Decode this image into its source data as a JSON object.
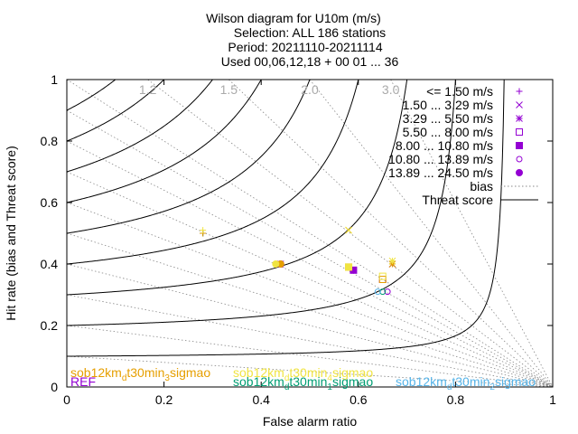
{
  "chart_data": {
    "type": "scatter",
    "title": [
      "Wilson diagram  for U10m (m/s)",
      "Selection: ALL    186 stations",
      "Period: 20211110-20211114",
      "Used 00,06,12,18 + 00 01 ... 36"
    ],
    "xlabel": "False alarm ratio",
    "ylabel": "Hit rate (bias and Threat score)",
    "xlim": [
      0,
      1
    ],
    "ylim": [
      0,
      1
    ],
    "xticks": [
      "0",
      "0.2",
      "0.4",
      "0.6",
      "0.8",
      "1"
    ],
    "yticks": [
      "0",
      "0.2",
      "0.4",
      "0.6",
      "0.8",
      "1"
    ],
    "bias_values": [
      0.1,
      0.2,
      0.3,
      0.4,
      0.5,
      0.6,
      0.7,
      0.8,
      0.9,
      1.0,
      1.2,
      1.5,
      2.0,
      3.0
    ],
    "bias_labels": [
      {
        "text": "1.2",
        "bias": 1.2
      },
      {
        "text": "1.5",
        "bias": 1.5
      },
      {
        "text": "2.0",
        "bias": 2.0
      },
      {
        "text": "3.0",
        "bias": 3.0
      }
    ],
    "threat_scores": [
      0.1,
      0.2,
      0.3,
      0.4,
      0.5,
      0.6,
      0.7,
      0.8,
      0.9
    ],
    "legend_position": "top-right",
    "legend": [
      {
        "label": "<= 1.50 m/s",
        "symbol": "plus"
      },
      {
        "label": "1.50 ... 3.29 m/s",
        "symbol": "cross"
      },
      {
        "label": "3.29 ... 5.50 m/s",
        "symbol": "star"
      },
      {
        "label": "5.50 ... 8.00 m/s",
        "symbol": "open-square"
      },
      {
        "label": "8.00 ... 10.80 m/s",
        "symbol": "filled-square"
      },
      {
        "label": "10.80 ... 13.89 m/s",
        "symbol": "open-circle"
      },
      {
        "label": "13.89 ... 24.50 m/s",
        "symbol": "filled-circle"
      },
      {
        "label": "bias",
        "symbol": "dotted-line"
      },
      {
        "label": "Threat score",
        "symbol": "solid-line"
      }
    ],
    "series": [
      {
        "name": "REF",
        "color": "#9400d3",
        "points": [
          {
            "symbol": "plus",
            "x": 0.28,
            "y": 0.5
          },
          {
            "symbol": "cross",
            "x": 0.44,
            "y": 0.4
          },
          {
            "symbol": "star",
            "x": 0.67,
            "y": 0.4
          },
          {
            "symbol": "open-square",
            "x": 0.65,
            "y": 0.35
          },
          {
            "symbol": "filled-square",
            "x": 0.59,
            "y": 0.38
          },
          {
            "symbol": "open-circle",
            "x": 0.66,
            "y": 0.31
          },
          {
            "symbol": "filled-circle",
            "x": 0.44,
            "y": 0.4
          }
        ]
      },
      {
        "name": "sob12km_d t30min_1 sigmao",
        "color": "#009e73",
        "points": [
          {
            "symbol": "plus",
            "x": 0.28,
            "y": 0.5
          },
          {
            "symbol": "open-circle",
            "x": 0.65,
            "y": 0.31
          }
        ]
      },
      {
        "name": "sob12km_d t30min_2 sigmao",
        "color": "#56b4e9",
        "points": [
          {
            "symbol": "open-circle",
            "x": 0.64,
            "y": 0.31
          }
        ]
      },
      {
        "name": "sob12km_d t30min_3 sigmao",
        "color": "#e69f00",
        "points": [
          {
            "symbol": "plus",
            "x": 0.28,
            "y": 0.5
          },
          {
            "symbol": "cross",
            "x": 0.58,
            "y": 0.51
          },
          {
            "symbol": "star",
            "x": 0.67,
            "y": 0.4
          },
          {
            "symbol": "open-square",
            "x": 0.65,
            "y": 0.35
          },
          {
            "symbol": "filled-square",
            "x": 0.58,
            "y": 0.39
          },
          {
            "symbol": "filled-circle",
            "x": 0.44,
            "y": 0.4
          }
        ]
      },
      {
        "name": "sob12km_d t30min_4 sigmao",
        "color": "#f0e442",
        "points": [
          {
            "symbol": "plus",
            "x": 0.28,
            "y": 0.51
          },
          {
            "symbol": "cross",
            "x": 0.58,
            "y": 0.51
          },
          {
            "symbol": "star",
            "x": 0.67,
            "y": 0.41
          },
          {
            "symbol": "open-square",
            "x": 0.65,
            "y": 0.36
          },
          {
            "symbol": "filled-square",
            "x": 0.58,
            "y": 0.39
          },
          {
            "symbol": "filled-circle",
            "x": 0.43,
            "y": 0.4
          }
        ]
      }
    ],
    "series_labels": [
      {
        "base": "REF",
        "color": "#9400d3"
      },
      {
        "base": "sob12km",
        "sub1": "d",
        "mid": "t30min",
        "sub2": "3",
        "end": "sigmao",
        "color": "#e69f00"
      },
      {
        "base": "sob12km",
        "sub1": "d",
        "mid": "t30min",
        "sub2": "4",
        "end": "sigmao",
        "color": "#f0e442"
      },
      {
        "base": "sob12km",
        "sub1": "d",
        "mid": "t30min",
        "sub2": "1",
        "end": "sigmao",
        "color": "#009e73"
      },
      {
        "base": "sob12km",
        "sub1": "d",
        "mid": "t30min",
        "sub2": "2",
        "end": "sigmao",
        "color": "#56b4e9"
      }
    ]
  }
}
